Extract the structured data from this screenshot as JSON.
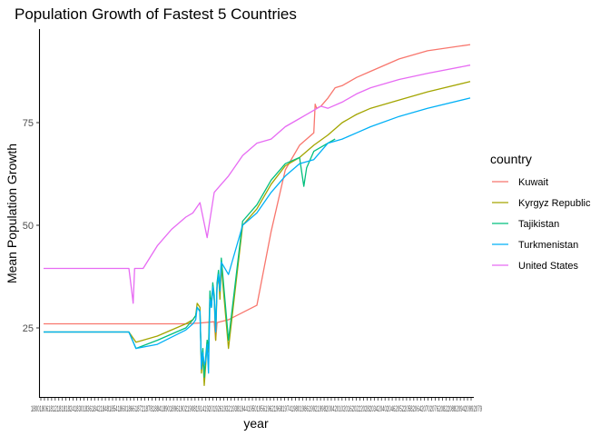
{
  "chart_data": {
    "type": "line",
    "title": "Population Growth of Fastest 5 Countries",
    "xlabel": "year",
    "ylabel": "Mean Population Growth",
    "y_ticks": [
      25,
      50,
      75
    ],
    "ylim": [
      7,
      96
    ],
    "x_range": [
      1800,
      2100
    ],
    "grid": false,
    "legend": {
      "title": "country",
      "position": "right"
    },
    "series": [
      {
        "name": "Kuwait",
        "color": "#F8766D",
        "x": [
          1800,
          1860,
          1900,
          1910,
          1920,
          1921,
          1922,
          1930,
          1950,
          1960,
          1970,
          1980,
          1990,
          1991,
          1992,
          1995,
          2000,
          2005,
          2010,
          2020,
          2030,
          2050,
          2070,
          2100
        ],
        "values": [
          26,
          26,
          26,
          26.2,
          26.5,
          22,
          26.3,
          27,
          30.5,
          48.5,
          63.5,
          69.5,
          72.5,
          79.5,
          78.5,
          79,
          81,
          83.5,
          84,
          86,
          87.5,
          90.5,
          92.5,
          94
        ]
      },
      {
        "name": "Kyrgyz Republic",
        "color": "#A3A500",
        "x": [
          1800,
          1860,
          1865,
          1880,
          1900,
          1905,
          1907,
          1908,
          1910,
          1911,
          1912,
          1913,
          1914,
          1915,
          1916,
          1917,
          1918,
          1919,
          1920,
          1921,
          1922,
          1923,
          1924,
          1925,
          1930,
          1940,
          1950,
          1960,
          1970,
          1980,
          1990,
          2000,
          2010,
          2020,
          2030,
          2050,
          2070,
          2100
        ],
        "values": [
          24,
          24,
          21.5,
          23,
          26,
          27,
          28,
          31,
          30,
          14,
          18,
          11,
          16,
          22,
          19,
          33,
          30,
          35,
          32,
          22,
          35,
          38,
          32,
          40,
          20,
          50,
          54,
          60,
          64.5,
          66.5,
          69.5,
          72,
          75,
          77,
          78.5,
          80.5,
          82.5,
          85
        ]
      },
      {
        "name": "Tajikistan",
        "color": "#00BF7D",
        "x": [
          1800,
          1860,
          1865,
          1880,
          1900,
          1905,
          1907,
          1908,
          1910,
          1911,
          1912,
          1913,
          1914,
          1915,
          1916,
          1917,
          1918,
          1919,
          1920,
          1921,
          1922,
          1923,
          1924,
          1925,
          1930,
          1940,
          1950,
          1960,
          1970,
          1980,
          1983,
          1985,
          1990,
          2000,
          2005
        ],
        "values": [
          24,
          24,
          20,
          22,
          25,
          27,
          28,
          30,
          29,
          16,
          20,
          13,
          18,
          22,
          20,
          34,
          30,
          36,
          33,
          24,
          36,
          39,
          34,
          42,
          22,
          51,
          55,
          61,
          65,
          66.5,
          59.5,
          64,
          68,
          70,
          71
        ]
      },
      {
        "name": "Turkmenistan",
        "color": "#00B0F6",
        "x": [
          1800,
          1860,
          1865,
          1880,
          1900,
          1905,
          1907,
          1908,
          1910,
          1911,
          1912,
          1913,
          1914,
          1915,
          1916,
          1917,
          1918,
          1919,
          1920,
          1921,
          1922,
          1923,
          1924,
          1925,
          1930,
          1940,
          1950,
          1960,
          1970,
          1980,
          1990,
          2000,
          2010,
          2020,
          2030,
          2050,
          2070,
          2100
        ],
        "values": [
          24,
          24,
          20,
          21,
          24.5,
          26,
          27,
          30,
          29,
          15,
          19,
          16,
          17,
          21,
          14,
          32,
          30,
          35,
          32,
          24,
          35,
          38,
          34,
          41,
          38,
          50,
          53,
          58,
          62,
          65,
          66,
          70,
          71,
          72.5,
          74,
          76.5,
          78.5,
          81
        ]
      },
      {
        "name": "United States",
        "color": "#E76BF3",
        "x": [
          1800,
          1860,
          1862,
          1863,
          1864,
          1870,
          1880,
          1890,
          1900,
          1905,
          1910,
          1915,
          1920,
          1925,
          1930,
          1940,
          1950,
          1960,
          1970,
          1980,
          1990,
          1995,
          2000,
          2010,
          2020,
          2030,
          2050,
          2070,
          2100
        ],
        "values": [
          39.5,
          39.5,
          34,
          31,
          39.5,
          39.5,
          45,
          49,
          52,
          53,
          55.5,
          47,
          58,
          60,
          62,
          67,
          70,
          71,
          74,
          76,
          78,
          79,
          78.5,
          80,
          82,
          83.5,
          85.5,
          87,
          89
        ]
      }
    ]
  }
}
